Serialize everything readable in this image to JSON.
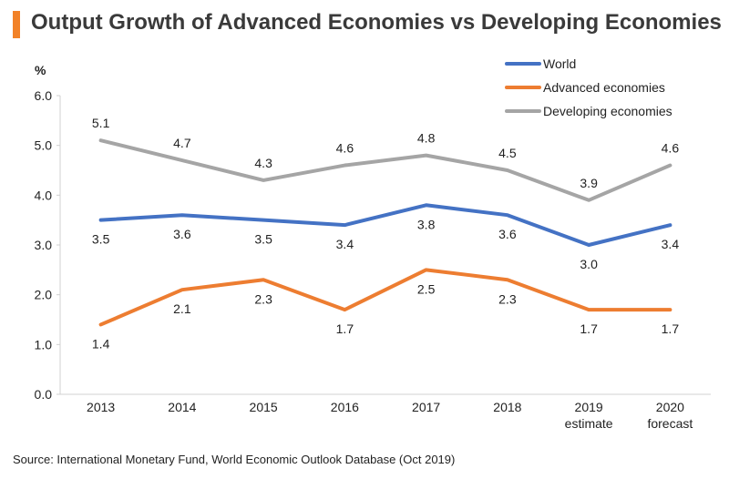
{
  "title": "Output Growth of Advanced Economies vs Developing Economies",
  "source": "Source: International Monetary Fund, World Economic Outlook Database (Oct 2019)",
  "colors": {
    "accent": "#f28228",
    "World": "#4472c4",
    "Advanced economies": "#ed7d31",
    "Developing economies": "#a5a5a5"
  },
  "chart_data": {
    "type": "line",
    "ylabel": "%",
    "ylim": [
      0,
      6
    ],
    "yticks": [
      "0.0",
      "1.0",
      "2.0",
      "3.0",
      "4.0",
      "5.0",
      "6.0"
    ],
    "categories": [
      [
        "2013"
      ],
      [
        "2014"
      ],
      [
        "2015"
      ],
      [
        "2016"
      ],
      [
        "2017"
      ],
      [
        "2018"
      ],
      [
        "2019",
        "estimate"
      ],
      [
        "2020",
        "forecast"
      ]
    ],
    "legend_position": "top-right",
    "grid": false,
    "series": [
      {
        "name": "World",
        "values": [
          3.5,
          3.6,
          3.5,
          3.4,
          3.8,
          3.6,
          3.0,
          3.4
        ],
        "labels": [
          "3.5",
          "3.6",
          "3.5",
          "3.4",
          "3.8",
          "3.6",
          "3.0",
          "3.4"
        ],
        "label_position": "below"
      },
      {
        "name": "Advanced economies",
        "values": [
          1.4,
          2.1,
          2.3,
          1.7,
          2.5,
          2.3,
          1.7,
          1.7
        ],
        "labels": [
          "1.4",
          "2.1",
          "2.3",
          "1.7",
          "2.5",
          "2.3",
          "1.7",
          "1.7"
        ],
        "label_position": "below"
      },
      {
        "name": "Developing economies",
        "values": [
          5.1,
          4.7,
          4.3,
          4.6,
          4.8,
          4.5,
          3.9,
          4.6
        ],
        "labels": [
          "5.1",
          "4.7",
          "4.3",
          "4.6",
          "4.8",
          "4.5",
          "3.9",
          "4.6"
        ],
        "label_position": "above"
      }
    ]
  }
}
